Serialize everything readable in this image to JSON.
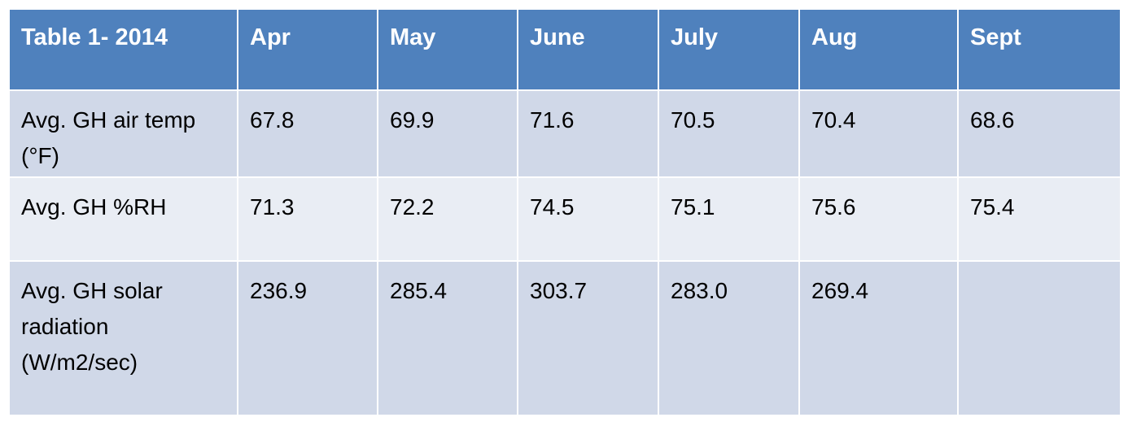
{
  "table": {
    "header": [
      "Table 1- 2014",
      "Apr",
      "May",
      "June",
      "July",
      "Aug",
      "Sept"
    ],
    "rows": [
      [
        "Avg.  GH air temp (°F)",
        "67.8",
        "69.9",
        "71.6",
        "70.5",
        "70.4",
        "68.6"
      ],
      [
        "Avg. GH %RH",
        "71.3",
        "72.2",
        "74.5",
        "75.1",
        "75.6",
        "75.4"
      ],
      [
        "Avg. GH solar radiation (W/m2/sec)",
        "236.9",
        "285.4",
        "303.7",
        "283.0",
        "269.4",
        null
      ]
    ]
  }
}
